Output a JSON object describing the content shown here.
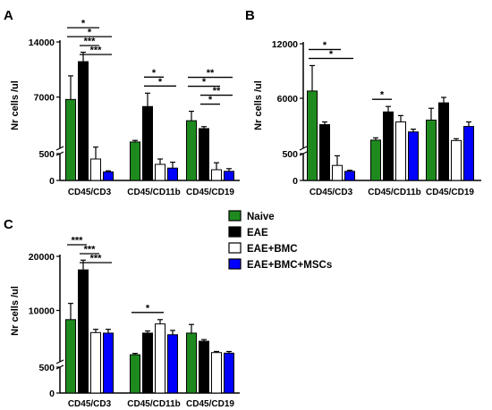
{
  "figure": {
    "legend": {
      "entries": [
        {
          "name": "Naive",
          "color": "#1e8a1e"
        },
        {
          "name": "EAE",
          "color": "#000000"
        },
        {
          "name": "EAE+BMC",
          "color": "#ffffff"
        },
        {
          "name": "EAE+BMC+MSCs",
          "color": "#0000ff"
        }
      ]
    }
  },
  "chart_data": [
    {
      "panel": "A",
      "type": "bar",
      "ylabel": "Nr cells /ul",
      "yticks": [
        "0",
        "500",
        "7000",
        "14000"
      ],
      "axis_break": "after 500",
      "categories": [
        "CD45/CD3",
        "CD45/CD11b",
        "CD45/CD19"
      ],
      "series": [
        {
          "name": "Naive",
          "values": [
            6700,
            1300,
            4000
          ],
          "errors": [
            3000,
            200,
            1200
          ]
        },
        {
          "name": "EAE",
          "values": [
            11500,
            5800,
            3000
          ],
          "errors": [
            1200,
            1700,
            250
          ]
        },
        {
          "name": "EAE+BMC",
          "values": [
            400,
            300,
            200
          ],
          "errors": [
            250,
            100,
            130
          ]
        },
        {
          "name": "EAE+BMC+MSCs",
          "values": [
            160,
            230,
            170
          ],
          "errors": [
            20,
            110,
            50
          ]
        }
      ],
      "significance": [
        {
          "group": "CD45/CD3",
          "from": 0,
          "to": 2,
          "label": "*"
        },
        {
          "group": "CD45/CD3",
          "from": 0,
          "to": 3,
          "label": "*"
        },
        {
          "group": "CD45/CD3",
          "from": 1,
          "to": 2,
          "label": "***"
        },
        {
          "group": "CD45/CD3",
          "from": 1,
          "to": 3,
          "label": "***"
        },
        {
          "group": "CD45/CD11b",
          "from": 1,
          "to": 2,
          "label": "*"
        },
        {
          "group": "CD45/CD11b",
          "from": 1,
          "to": 3,
          "label": "*"
        },
        {
          "group": "CD45/CD19",
          "from": 0,
          "to": 3,
          "label": "**"
        },
        {
          "group": "CD45/CD19",
          "from": 0,
          "to": 2,
          "label": "*"
        },
        {
          "group": "CD45/CD19",
          "from": 1,
          "to": 3,
          "label": "**"
        },
        {
          "group": "CD45/CD19",
          "from": 1,
          "to": 2,
          "label": "*"
        }
      ]
    },
    {
      "panel": "B",
      "type": "bar",
      "ylabel": "Nr cells /ul",
      "yticks": [
        "0",
        "500",
        "6000",
        "12000"
      ],
      "axis_break": "after 500",
      "categories": [
        "CD45/CD3",
        "CD45/CD11b",
        "CD45/CD19"
      ],
      "series": [
        {
          "name": "Naive",
          "values": [
            6800,
            1400,
            3600
          ],
          "errors": [
            2800,
            250,
            1300
          ]
        },
        {
          "name": "EAE",
          "values": [
            3100,
            4500,
            5500
          ],
          "errors": [
            300,
            600,
            600
          ]
        },
        {
          "name": "EAE+BMC",
          "values": [
            280,
            3400,
            1350
          ],
          "errors": [
            180,
            700,
            200
          ]
        },
        {
          "name": "EAE+BMC+MSCs",
          "values": [
            170,
            2300,
            2900
          ],
          "errors": [
            20,
            300,
            500
          ]
        }
      ],
      "significance": [
        {
          "group": "CD45/CD3",
          "from": 0,
          "to": 2,
          "label": "*"
        },
        {
          "group": "CD45/CD3",
          "from": 0,
          "to": 3,
          "label": "*"
        },
        {
          "group": "CD45/CD11b",
          "from": 0,
          "to": 1,
          "label": "*"
        }
      ]
    },
    {
      "panel": "C",
      "type": "bar",
      "ylabel": "Nr cells /ul",
      "yticks": [
        "0",
        "500",
        "10000",
        "20000"
      ],
      "axis_break": "after 500",
      "categories": [
        "CD45/CD3",
        "CD45/CD11b",
        "CD45/CD19"
      ],
      "series": [
        {
          "name": "Naive",
          "values": [
            8300,
            1800,
            5800
          ],
          "errors": [
            3000,
            250,
            1600
          ]
        },
        {
          "name": "EAE",
          "values": [
            17500,
            5800,
            4300
          ],
          "errors": [
            1800,
            400,
            300
          ]
        },
        {
          "name": "EAE+BMC",
          "values": [
            5900,
            7500,
            2200
          ],
          "errors": [
            600,
            800,
            200
          ]
        },
        {
          "name": "EAE+BMC+MSCs",
          "values": [
            5800,
            5500,
            2100
          ],
          "errors": [
            700,
            800,
            300
          ]
        }
      ],
      "significance": [
        {
          "group": "CD45/CD3",
          "from": 0,
          "to": 1,
          "label": "***"
        },
        {
          "group": "CD45/CD3",
          "from": 1,
          "to": 2,
          "label": "***"
        },
        {
          "group": "CD45/CD3",
          "from": 1,
          "to": 3,
          "label": "***"
        },
        {
          "group": "CD45/CD11b",
          "from": 0,
          "to": 2,
          "label": "*"
        }
      ]
    }
  ]
}
